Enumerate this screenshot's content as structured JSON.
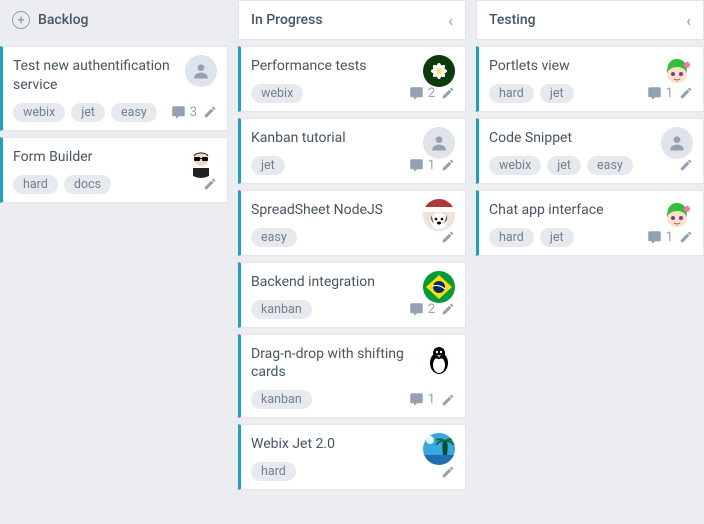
{
  "colors": {
    "card_accent": "#1ca1c1",
    "bg": "#ebedf0",
    "card_bg": "#ffffff",
    "border": "#e3e7ed",
    "text": "#475466",
    "muted": "#94a1b3",
    "tag_bg": "#e6eaef",
    "tag_text": "#73808f"
  },
  "columns": [
    {
      "title": "Backlog",
      "header_style": "plain-plus",
      "cards": [
        {
          "title": "Test new authentification service",
          "tags": [
            "webix",
            "jet",
            "easy"
          ],
          "comments": 3,
          "avatar": "placeholder"
        },
        {
          "title": "Form Builder",
          "tags": [
            "hard",
            "docs"
          ],
          "comments": null,
          "avatar": "sunglasses"
        }
      ]
    },
    {
      "title": "In Progress",
      "header_style": "bordered-chevron",
      "cards": [
        {
          "title": "Performance tests",
          "tags": [
            "webix"
          ],
          "comments": 2,
          "avatar": "flower"
        },
        {
          "title": "Kanban tutorial",
          "tags": [
            "jet"
          ],
          "comments": 1,
          "avatar": "placeholder"
        },
        {
          "title": "SpreadSheet NodeJS",
          "tags": [
            "easy"
          ],
          "comments": null,
          "avatar": "dog"
        },
        {
          "title": "Backend integration",
          "tags": [
            "kanban"
          ],
          "comments": 2,
          "avatar": "brazil"
        },
        {
          "title": "Drag-n-drop with shifting cards",
          "tags": [
            "kanban"
          ],
          "comments": 1,
          "avatar": "penguin"
        },
        {
          "title": "Webix Jet 2.0",
          "tags": [
            "hard"
          ],
          "comments": null,
          "avatar": "beach"
        }
      ]
    },
    {
      "title": "Testing",
      "header_style": "bordered-chevron",
      "cards": [
        {
          "title": "Portlets view",
          "tags": [
            "hard",
            "jet"
          ],
          "comments": 1,
          "avatar": "anime"
        },
        {
          "title": "Code Snippet",
          "tags": [
            "webix",
            "jet",
            "easy"
          ],
          "comments": null,
          "avatar": "placeholder"
        },
        {
          "title": "Chat app interface",
          "tags": [
            "hard",
            "jet"
          ],
          "comments": 1,
          "avatar": "anime"
        }
      ]
    }
  ]
}
